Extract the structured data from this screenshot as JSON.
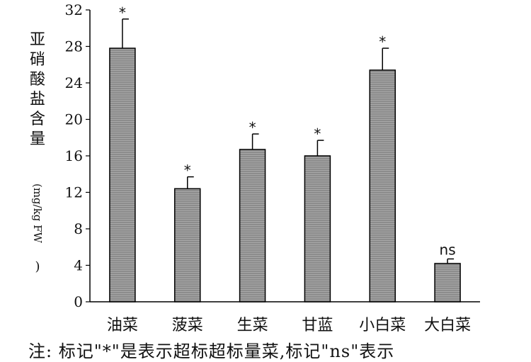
{
  "chart_data": {
    "type": "bar",
    "categories": [
      "油菜",
      "菠菜",
      "生菜",
      "甘蓝",
      "小白菜",
      "大白菜"
    ],
    "values": [
      27.8,
      12.4,
      16.7,
      16.0,
      25.4,
      4.2
    ],
    "errors": [
      3.2,
      1.3,
      1.7,
      1.7,
      2.4,
      0.5
    ],
    "annotations": [
      "*",
      "*",
      "*",
      "*",
      "*",
      "ns"
    ],
    "ylabel_main": [
      "亚",
      "硝",
      "酸",
      "盐",
      "含",
      "量"
    ],
    "ylabel_unit": "(mg/kg FW",
    "ylabel_close": ")",
    "yticks": [
      0,
      4,
      8,
      12,
      16,
      20,
      24,
      28,
      32
    ],
    "ylim": [
      0,
      32
    ],
    "bar_color": "#8c8c8c"
  },
  "footnote": "注: 标记\"*\"是表示超标超标量菜,标记\"ns\"表示"
}
